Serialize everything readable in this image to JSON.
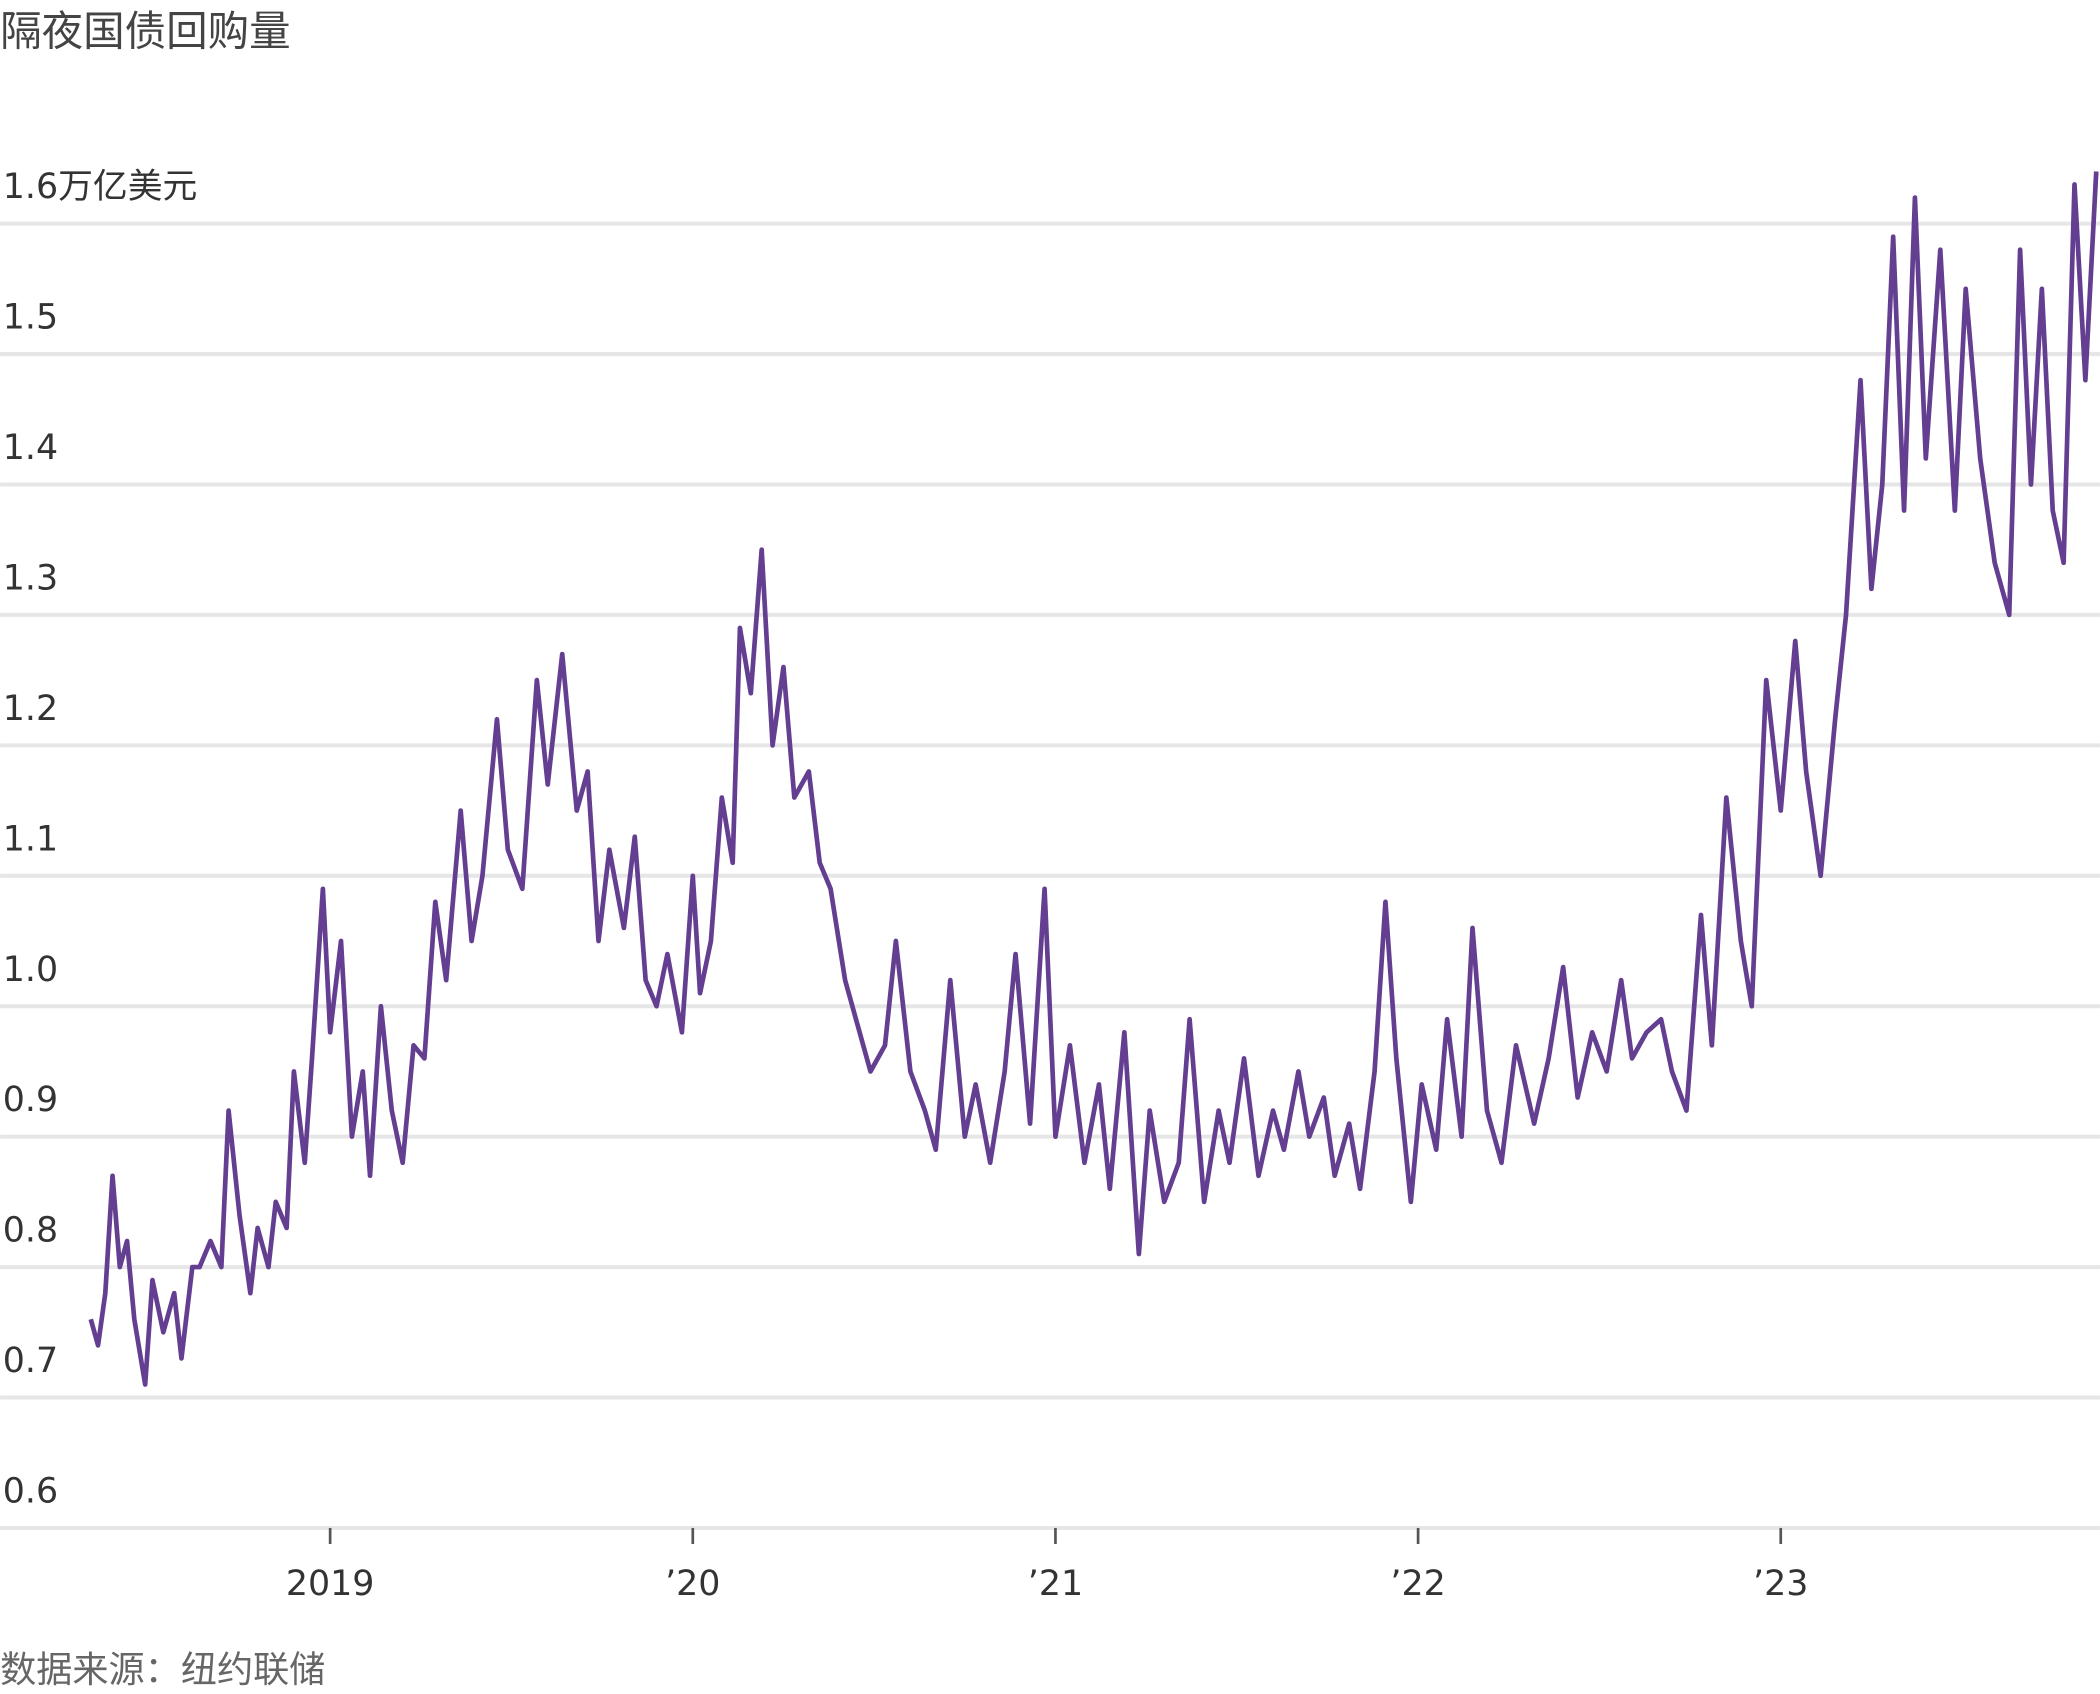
{
  "chart_data": {
    "type": "line",
    "title": "隔夜国债回购量",
    "source": "数据来源：纽约联储",
    "color": "#643e91",
    "grid": true,
    "xlim": [
      2018.09,
      2023.88
    ],
    "ylim": [
      0.6,
      1.65
    ],
    "yticks": [
      0.6,
      0.7,
      0.8,
      0.9,
      {
        "value": 1,
        "label": "1.0"
      },
      1.1,
      1.2,
      1.3,
      1.4,
      1.5,
      {
        "value": 1.6,
        "label": "1.6万亿美元"
      }
    ],
    "xticks": [
      2019,
      {
        "value": 2020,
        "label": "’20"
      },
      {
        "value": 2021,
        "label": "’21"
      },
      {
        "value": 2022,
        "label": "’22"
      },
      {
        "value": 2023,
        "label": "’23"
      }
    ],
    "x": [
      2018.34,
      2018.36,
      2018.38,
      2018.4,
      2018.42,
      2018.44,
      2018.46,
      2018.49,
      2018.51,
      2018.54,
      2018.57,
      2018.59,
      2018.62,
      2018.64,
      2018.67,
      2018.7,
      2018.72,
      2018.75,
      2018.78,
      2018.8,
      2018.83,
      2018.85,
      2018.88,
      2018.9,
      2018.93,
      2018.95,
      2018.98,
      2019.0,
      2019.03,
      2019.06,
      2019.09,
      2019.11,
      2019.14,
      2019.17,
      2019.2,
      2019.23,
      2019.26,
      2019.29,
      2019.32,
      2019.36,
      2019.39,
      2019.42,
      2019.46,
      2019.49,
      2019.53,
      2019.57,
      2019.6,
      2019.64,
      2019.68,
      2019.71,
      2019.74,
      2019.77,
      2019.81,
      2019.84,
      2019.87,
      2019.9,
      2019.93,
      2019.97,
      2020.0,
      2020.02,
      2020.05,
      2020.08,
      2020.11,
      2020.13,
      2020.16,
      2020.19,
      2020.22,
      2020.25,
      2020.28,
      2020.32,
      2020.35,
      2020.38,
      2020.42,
      2020.45,
      2020.49,
      2020.53,
      2020.56,
      2020.6,
      2020.64,
      2020.67,
      2020.71,
      2020.75,
      2020.78,
      2020.82,
      2020.86,
      2020.89,
      2020.93,
      2020.97,
      2021.0,
      2021.04,
      2021.08,
      2021.12,
      2021.15,
      2021.19,
      2021.23,
      2021.26,
      2021.3,
      2021.34,
      2021.37,
      2021.41,
      2021.45,
      2021.48,
      2021.52,
      2021.56,
      2021.6,
      2021.63,
      2021.67,
      2021.7,
      2021.74,
      2021.77,
      2021.81,
      2021.84,
      2021.88,
      2021.91,
      2021.94,
      2021.98,
      2022.01,
      2022.05,
      2022.08,
      2022.12,
      2022.15,
      2022.19,
      2022.23,
      2022.27,
      2022.32,
      2022.36,
      2022.4,
      2022.44,
      2022.48,
      2022.52,
      2022.56,
      2022.59,
      2022.63,
      2022.67,
      2022.7,
      2022.74,
      2022.78,
      2022.81,
      2022.85,
      2022.89,
      2022.92,
      2022.96,
      2023.0,
      2023.04,
      2023.07,
      2023.11,
      2023.15,
      2023.18,
      2023.22,
      2023.25,
      2023.28,
      2023.31,
      2023.34,
      2023.37,
      2023.4,
      2023.44,
      2023.48,
      2023.51,
      2023.55,
      2023.59,
      2023.63,
      2023.66,
      2023.69,
      2023.72,
      2023.75,
      2023.78,
      2023.81,
      2023.84,
      2023.87
    ],
    "values": [
      0.76,
      0.74,
      0.78,
      0.87,
      0.8,
      0.82,
      0.76,
      0.71,
      0.79,
      0.75,
      0.78,
      0.73,
      0.8,
      0.8,
      0.82,
      0.8,
      0.92,
      0.84,
      0.78,
      0.83,
      0.8,
      0.85,
      0.83,
      0.95,
      0.88,
      0.96,
      1.09,
      0.98,
      1.05,
      0.9,
      0.95,
      0.87,
      1.0,
      0.92,
      0.88,
      0.97,
      0.96,
      1.08,
      1.02,
      1.15,
      1.05,
      1.1,
      1.22,
      1.12,
      1.09,
      1.25,
      1.17,
      1.27,
      1.15,
      1.18,
      1.05,
      1.12,
      1.06,
      1.13,
      1.02,
      1.0,
      1.04,
      0.98,
      1.1,
      1.01,
      1.05,
      1.16,
      1.11,
      1.29,
      1.24,
      1.35,
      1.2,
      1.26,
      1.16,
      1.18,
      1.11,
      1.09,
      1.02,
      0.99,
      0.95,
      0.97,
      1.05,
      0.95,
      0.92,
      0.89,
      1.02,
      0.9,
      0.94,
      0.88,
      0.95,
      1.04,
      0.91,
      1.09,
      0.9,
      0.97,
      0.88,
      0.94,
      0.86,
      0.98,
      0.81,
      0.92,
      0.85,
      0.88,
      0.99,
      0.85,
      0.92,
      0.88,
      0.96,
      0.87,
      0.92,
      0.89,
      0.95,
      0.9,
      0.93,
      0.87,
      0.91,
      0.86,
      0.95,
      1.08,
      0.96,
      0.85,
      0.94,
      0.89,
      0.99,
      0.9,
      1.06,
      0.92,
      0.88,
      0.97,
      0.91,
      0.96,
      1.03,
      0.93,
      0.98,
      0.95,
      1.02,
      0.96,
      0.98,
      0.99,
      0.95,
      0.92,
      1.07,
      0.97,
      1.16,
      1.05,
      1.0,
      1.25,
      1.15,
      1.28,
      1.18,
      1.1,
      1.22,
      1.3,
      1.48,
      1.32,
      1.4,
      1.59,
      1.38,
      1.62,
      1.42,
      1.58,
      1.38,
      1.55,
      1.42,
      1.34,
      1.3,
      1.58,
      1.4,
      1.55,
      1.38,
      1.34,
      1.63,
      1.48,
      1.64
    ]
  }
}
